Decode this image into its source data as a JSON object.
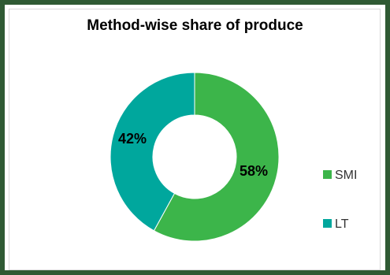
{
  "chart_data": {
    "type": "pie",
    "title": "Method-wise share of produce",
    "series": [
      {
        "name": "SMI",
        "value": 58,
        "label": "58%",
        "color": "#3cb54a"
      },
      {
        "name": "LT",
        "value": 42,
        "label": "42%",
        "color": "#00a79d"
      }
    ],
    "donut": true,
    "legend_position": "right"
  }
}
